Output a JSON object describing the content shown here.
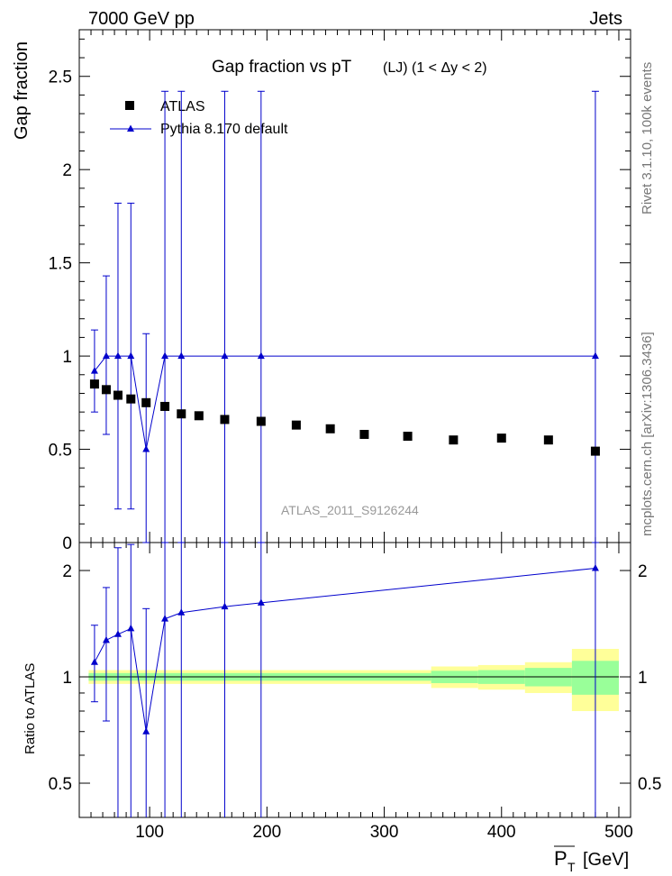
{
  "header": {
    "beam": "7000 GeV pp",
    "category": "Jets"
  },
  "side_labels": {
    "rivet": "Rivet 3.1.10,  100k events",
    "mcplots": "mcplots.cern.ch [arXiv:1306.3436]"
  },
  "colors": {
    "mc": "#0000cc",
    "data": "#000000",
    "band_inner": "#99ff99",
    "band_outer": "#ffff99",
    "watermark": "#999999"
  },
  "chart_data": [
    {
      "type": "scatter",
      "panel": "main",
      "title": "Gap fraction vs pT",
      "subtitle": "(LJ) (1 < Δy < 2)",
      "ylabel": "Gap fraction",
      "watermark": "ATLAS_2011_S9126244",
      "xlim": [
        40,
        510
      ],
      "ylim": [
        0,
        2.75
      ],
      "yticks": [
        0,
        0.5,
        1,
        1.5,
        2,
        2.5
      ],
      "ytick_labels": [
        "0",
        "0.5",
        "1",
        "1.5",
        "2",
        "2.5"
      ],
      "legend": [
        {
          "label": "ATLAS",
          "marker": "square"
        },
        {
          "label": "Pythia 8.170 default",
          "marker": "triangle-line"
        }
      ],
      "data_series": {
        "name": "ATLAS",
        "x": [
          53,
          63,
          73,
          84,
          97,
          113,
          127,
          142,
          164,
          195,
          225,
          254,
          283,
          320,
          359,
          400,
          440,
          480
        ],
        "y": [
          0.85,
          0.82,
          0.79,
          0.77,
          0.75,
          0.73,
          0.69,
          0.68,
          0.66,
          0.65,
          0.63,
          0.61,
          0.58,
          0.57,
          0.55,
          0.56,
          0.55,
          0.49
        ]
      },
      "mc_series": {
        "name": "Pythia 8.170 default",
        "x": [
          53,
          63,
          73,
          84,
          97,
          113,
          127,
          164,
          195,
          480
        ],
        "y": [
          0.92,
          1.0,
          1.0,
          1.0,
          0.5,
          1.0,
          1.0,
          1.0,
          1.0,
          1.0
        ],
        "err_low": [
          0.22,
          0.42,
          0.82,
          0.82,
          0.5,
          1.0,
          1.0,
          1.0,
          1.0,
          1.0
        ],
        "err_high": [
          0.22,
          0.43,
          0.82,
          0.82,
          0.62,
          1.42,
          1.42,
          1.42,
          1.42,
          1.42
        ]
      }
    },
    {
      "type": "line",
      "panel": "ratio",
      "ylabel": "Ratio to ATLAS",
      "xlabel": "P_T [GeV]",
      "xlabel_base": "P",
      "xlabel_sub": "T",
      "xlabel_unit": "[GeV]",
      "xlim": [
        40,
        510
      ],
      "ylim": [
        0.4,
        2.4
      ],
      "yticks": [
        0.5,
        1,
        2
      ],
      "ytick_labels": [
        "0.5",
        "1",
        "2"
      ],
      "xticks": [
        100,
        200,
        300,
        400,
        500
      ],
      "xtick_labels": [
        "100",
        "200",
        "300",
        "400",
        "500"
      ],
      "bands": [
        {
          "x0": 48,
          "x1": 340,
          "inner": 0.025,
          "outer": 0.045
        },
        {
          "x0": 340,
          "x1": 380,
          "inner": 0.04,
          "outer": 0.07
        },
        {
          "x0": 380,
          "x1": 420,
          "inner": 0.045,
          "outer": 0.08
        },
        {
          "x0": 420,
          "x1": 460,
          "inner": 0.06,
          "outer": 0.1
        },
        {
          "x0": 460,
          "x1": 500,
          "inner": 0.11,
          "outer": 0.2
        }
      ],
      "mc_ratio": {
        "x": [
          53,
          63,
          73,
          84,
          97,
          113,
          127,
          164,
          195,
          480
        ],
        "y": [
          1.1,
          1.27,
          1.32,
          1.37,
          0.7,
          1.46,
          1.52,
          1.58,
          1.62,
          2.03
        ],
        "err_low": [
          0.25,
          0.52,
          1.0,
          1.0,
          0.7,
          1.06,
          1.12,
          1.18,
          1.22,
          1.63
        ],
        "err_high": [
          0.3,
          0.52,
          1.0,
          1.0,
          0.86,
          1.0,
          1.0,
          1.0,
          1.0,
          1.0
        ]
      }
    }
  ]
}
